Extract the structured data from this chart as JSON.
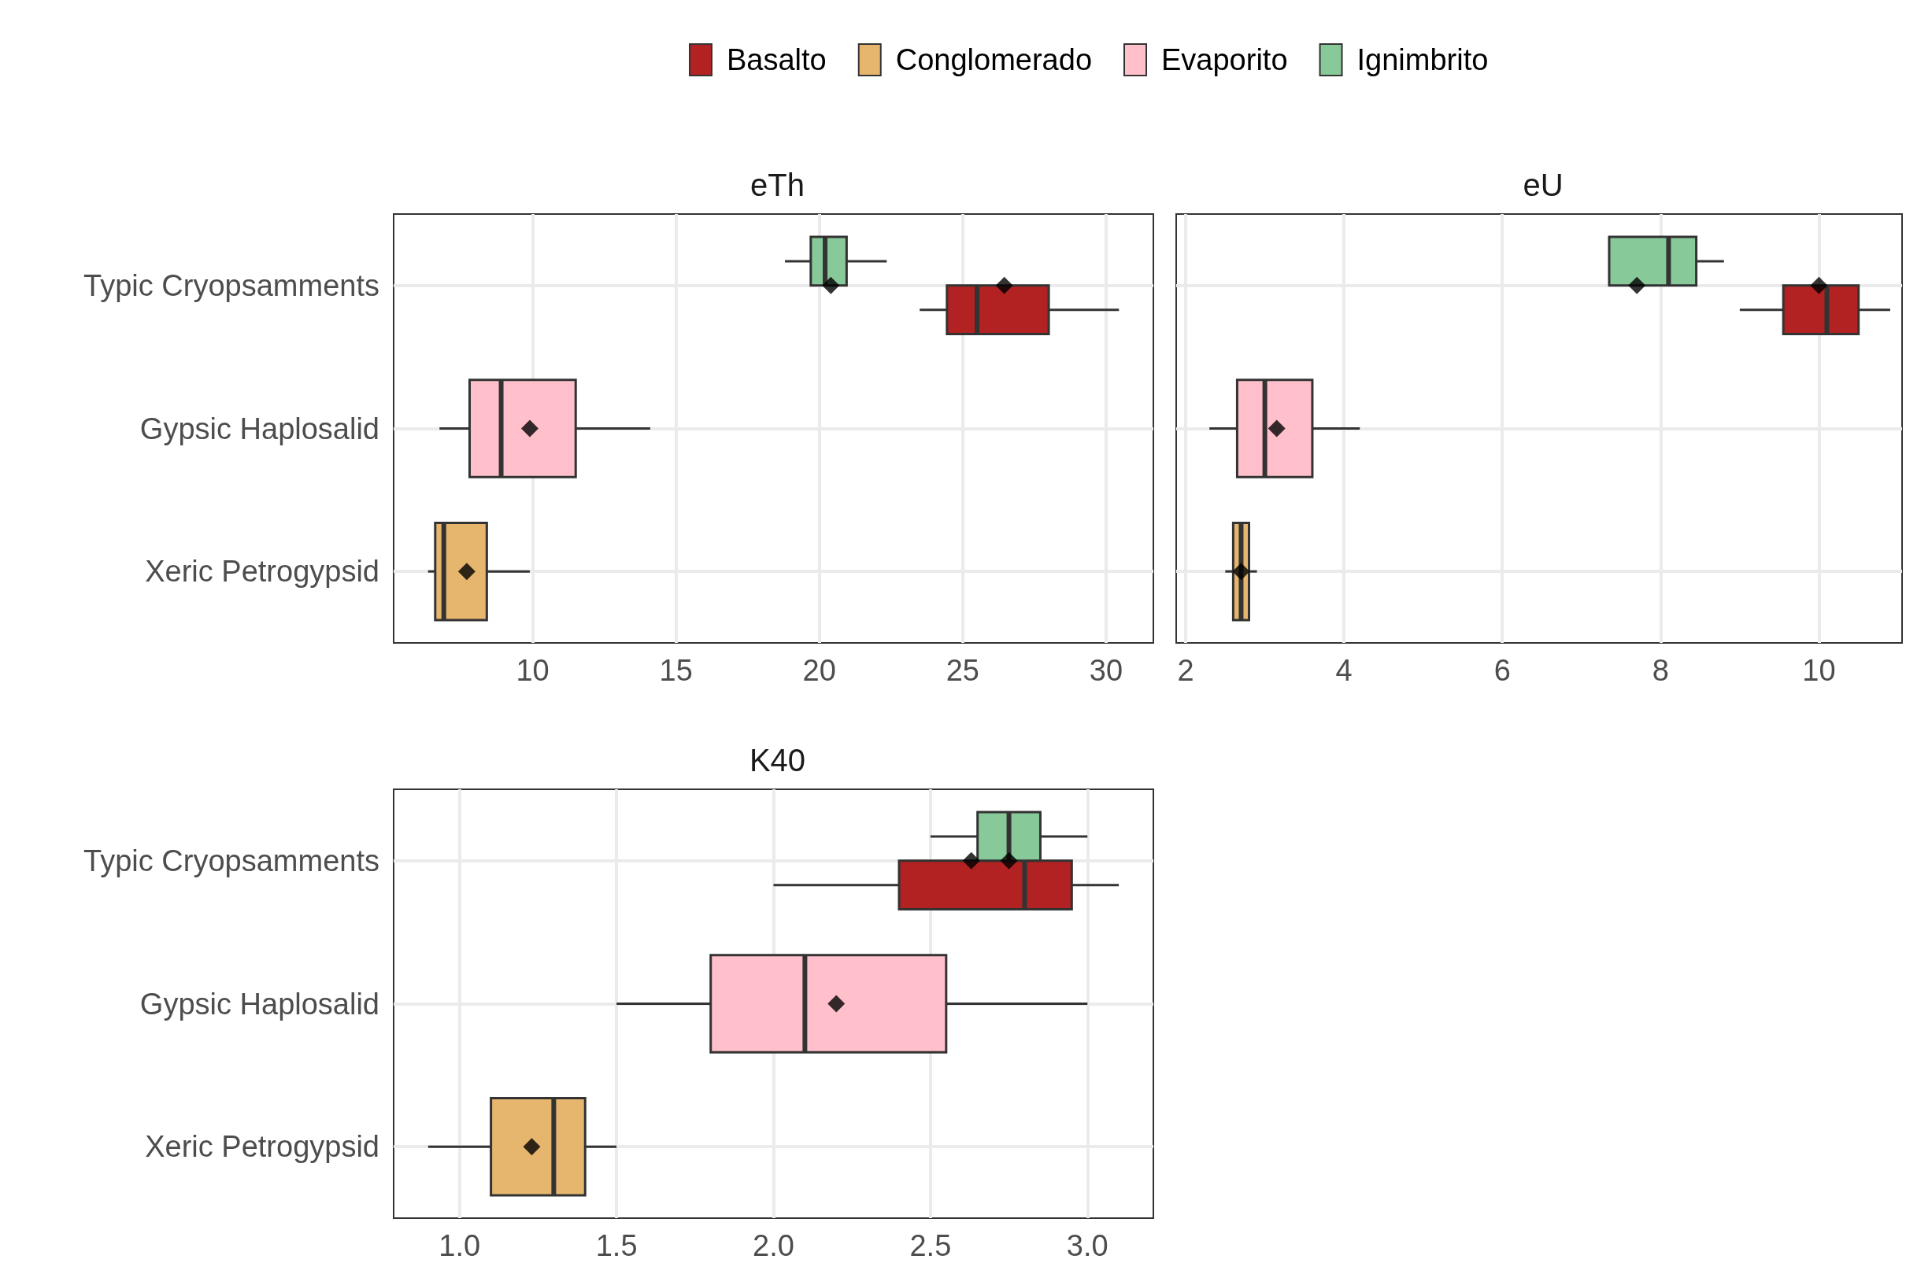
{
  "chart_data": [
    {
      "type": "box",
      "title": "eTh",
      "orientation": "horizontal",
      "categories": [
        "Typic Cryopsamments",
        "Gypsic Haplosalid",
        "Xeric Petrogypsid"
      ],
      "xlim": [
        5.15,
        31.65
      ],
      "xticks": [
        10,
        15,
        20,
        25,
        30
      ],
      "grid": true,
      "legend": "top",
      "marker": "diamond",
      "series": [
        {
          "name": "Basalto",
          "color": "#b22222",
          "boxes": [
            {
              "low": 23.5,
              "q1": 24.45,
              "median": 25.5,
              "q3": 28,
              "high": 30.45
            },
            null,
            null
          ]
        },
        {
          "name": "Conglomerado",
          "color": "#e6b66e",
          "boxes": [
            null,
            null,
            {
              "low": 6.35,
              "q1": 6.6,
              "median": 6.9,
              "q3": 8.4,
              "high": 9.9
            }
          ]
        },
        {
          "name": "Evaporito",
          "color": "#ffc0cb",
          "boxes": [
            null,
            {
              "low": 6.75,
              "q1": 7.8,
              "median": 8.9,
              "q3": 11.5,
              "high": 14.1
            },
            null
          ]
        },
        {
          "name": "Ignimbrito",
          "color": "#88c999",
          "boxes": [
            {
              "low": 18.8,
              "q1": 19.7,
              "median": 20.2,
              "q3": 20.95,
              "high": 22.35
            },
            null,
            null
          ]
        },
        {
          "type": "scatter",
          "color": "#000000",
          "x": [
            "Typic Cryopsamments",
            "Xeric Petrogypsid",
            "Gypsic Haplosalid",
            "Typic Cryopsamments"
          ],
          "values": [
            26.45,
            7.7,
            9.9,
            20.4
          ]
        }
      ]
    },
    {
      "type": "box",
      "title": "eU",
      "orientation": "horizontal",
      "categories": [
        "Typic Cryopsamments",
        "Gypsic Haplosalid",
        "Xeric Petrogypsid"
      ],
      "xlim": [
        1.88,
        11.05
      ],
      "xticks": [
        2,
        4,
        6,
        8,
        10
      ],
      "grid": true,
      "tick_labels": "x",
      "marker": "diamond",
      "series": [
        {
          "color": "#b22222",
          "boxes": [
            {
              "low": 9,
              "q1": 9.55,
              "median": 10.1,
              "q3": 10.5,
              "high": 10.9
            },
            null,
            null
          ]
        },
        {
          "color": "#e6b66e",
          "boxes": [
            null,
            null,
            {
              "low": 2.5,
              "q1": 2.6,
              "median": 2.7,
              "q3": 2.8,
              "high": 2.9
            }
          ]
        },
        {
          "color": "#ffc0cb",
          "boxes": [
            null,
            {
              "low": 2.3,
              "q1": 2.65,
              "median": 3,
              "q3": 3.6,
              "high": 4.2
            },
            null
          ]
        },
        {
          "color": "#88c999",
          "boxes": [
            {
              "low": 7.35,
              "q1": 7.35,
              "median": 8.1,
              "q3": 8.45,
              "high": 8.8
            },
            null,
            null
          ]
        },
        {
          "type": "scatter",
          "color": "#000000",
          "x": [
            "Typic Cryopsamments",
            "Xeric Petrogypsid",
            "Gypsic Haplosalid",
            "Typic Cryopsamments"
          ],
          "values": [
            10,
            2.7,
            3.15,
            7.7
          ]
        }
      ]
    },
    {
      "type": "box",
      "title": "K40",
      "orientation": "horizontal",
      "categories": [
        "Typic Cryopsamments",
        "Gypsic Haplosalid",
        "Xeric Petrogypsid"
      ],
      "xlim": [
        0.79,
        3.21
      ],
      "xticks": [
        {
          "value": 1,
          "label": "1.0"
        },
        {
          "value": 1.5,
          "label": "1.5"
        },
        {
          "value": 2,
          "label": "2.0"
        },
        {
          "value": 2.5,
          "label": "2.5"
        },
        {
          "value": 3,
          "label": "3.0"
        }
      ],
      "grid": true,
      "marker": "diamond",
      "series": [
        {
          "color": "#b22222",
          "boxes": [
            {
              "low": 2,
              "q1": 2.4,
              "median": 2.8,
              "q3": 2.95,
              "high": 3.1
            },
            null,
            null
          ]
        },
        {
          "color": "#e6b66e",
          "boxes": [
            null,
            null,
            {
              "low": 0.9,
              "q1": 1.1,
              "median": 1.3,
              "q3": 1.4,
              "high": 1.5
            }
          ]
        },
        {
          "color": "#ffc0cb",
          "boxes": [
            null,
            {
              "low": 1.5,
              "q1": 1.8,
              "median": 2.1,
              "q3": 2.55,
              "high": 3
            },
            null
          ]
        },
        {
          "color": "#88c999",
          "boxes": [
            {
              "low": 2.5,
              "q1": 2.65,
              "median": 2.75,
              "q3": 2.85,
              "high": 3
            },
            null,
            null
          ]
        },
        {
          "type": "scatter",
          "color": "#000000",
          "x": [
            "Typic Cryopsamments",
            "Xeric Petrogypsid",
            "Gypsic Haplosalid",
            "Typic Cryopsamments"
          ],
          "values": [
            2.63,
            1.23,
            2.2,
            2.75
          ]
        }
      ]
    }
  ]
}
